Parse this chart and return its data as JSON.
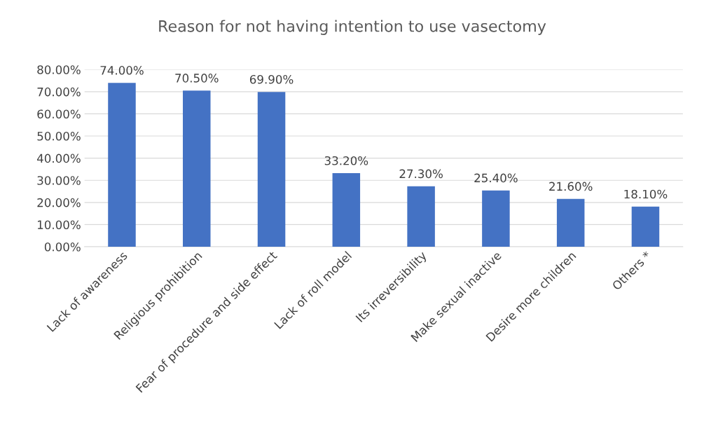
{
  "chart_data": {
    "type": "bar",
    "title": "Reason for not having intention to use vasectomy",
    "categories": [
      "Lack of awareness",
      "Religious prohibition",
      "Fear of procedure and side effect",
      "Lack of roll model",
      "Its irreversibility",
      "Make sexual inactive",
      "Desire more children",
      "Others *"
    ],
    "values": [
      74.0,
      70.5,
      69.9,
      33.2,
      27.3,
      25.4,
      21.6,
      18.1
    ],
    "value_labels": [
      "74.00%",
      "70.50%",
      "69.90%",
      "33.20%",
      "27.30%",
      "25.40%",
      "21.60%",
      "18.10%"
    ],
    "color": "#4472c4",
    "ylim": [
      0,
      80
    ],
    "yticks": [
      {
        "value": 0,
        "label": "0.00%"
      },
      {
        "value": 10,
        "label": "10.00%"
      },
      {
        "value": 20,
        "label": "20.00%"
      },
      {
        "value": 30,
        "label": "30.00%"
      },
      {
        "value": 40,
        "label": "40.00%"
      },
      {
        "value": 50,
        "label": "50.00%"
      },
      {
        "value": 60,
        "label": "60.00%"
      },
      {
        "value": 70,
        "label": "70.00%"
      },
      {
        "value": 80,
        "label": "80.00%"
      }
    ],
    "grid": "y",
    "legend": false
  }
}
